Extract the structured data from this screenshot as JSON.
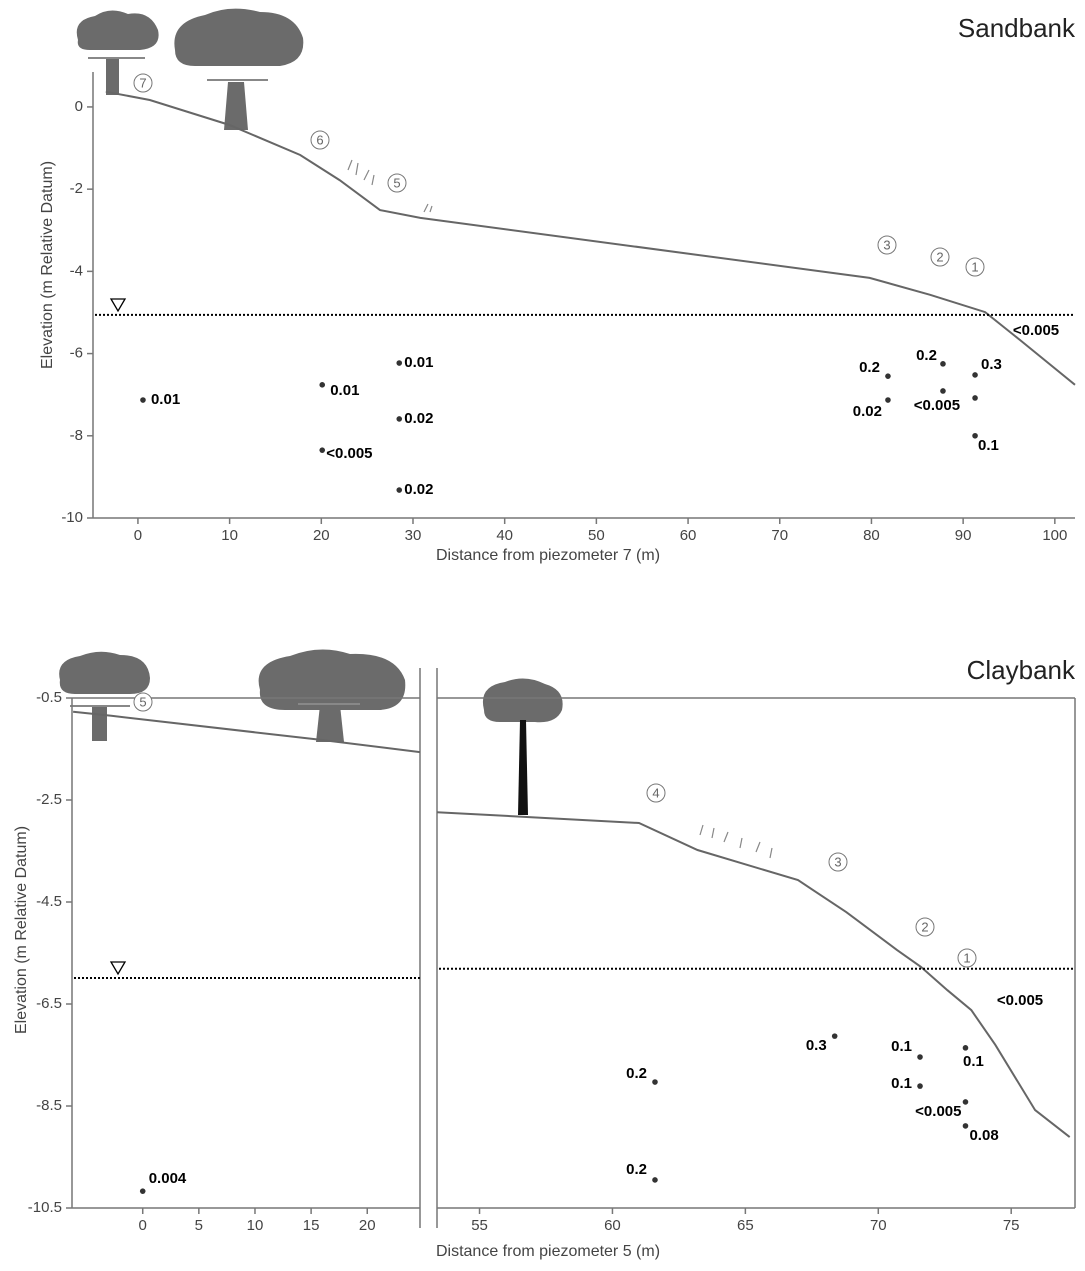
{
  "chart_data": [
    {
      "type": "scatter",
      "title": "Sandbank",
      "xlabel": "Distance from piezometer 7 (m)",
      "ylabel": "Elevation (m Relative Datum)",
      "ylim": [
        -10,
        0.85
      ],
      "yticks": [
        0,
        -2,
        -4,
        -6,
        -8,
        -10
      ],
      "surface_label": "<0.005",
      "panels": [
        {
          "xlim": [
            -4.9,
            102.2
          ],
          "xticks": [
            0,
            10,
            20,
            30,
            40,
            50,
            60,
            70,
            80,
            90,
            100
          ],
          "x": [
            0.55,
            20.1,
            20.1,
            28.5,
            28.5,
            28.5,
            81.8,
            81.8,
            87.8,
            87.8,
            91.3,
            91.3,
            91.3
          ],
          "y": [
            -7.13,
            -6.76,
            -8.35,
            -6.23,
            -7.59,
            -9.32,
            -6.55,
            -7.13,
            -6.25,
            -6.91,
            -6.52,
            -7.08,
            -8.0
          ],
          "labels": [
            "0.01",
            "0.01",
            "<0.005",
            "0.01",
            "0.02",
            "0.02",
            "0.2",
            "0.02",
            "0.2",
            null,
            "0.3",
            "<0.005",
            "0.1"
          ],
          "profile_x": [
            -3.5,
            1.3,
            10.0,
            17.7,
            22.0,
            26.4,
            30.8,
            79.8,
            86.4,
            92.4,
            96.2,
            102.2
          ],
          "profile_y": [
            0.37,
            0.17,
            -0.44,
            -1.17,
            -1.78,
            -2.51,
            -2.7,
            -4.16,
            -4.57,
            -4.99,
            -5.67,
            -6.76
          ],
          "water_table": -5.06,
          "stations": [
            "7",
            "6",
            "5",
            "3",
            "2",
            "1"
          ]
        }
      ]
    },
    {
      "type": "scatter",
      "title": "Claybank",
      "xlabel": "Distance from piezometer 5 (m)",
      "ylabel": "Elevation (m Relative Datum)",
      "ylim": [
        -10.5,
        -0.5
      ],
      "yticks": [
        -0.5,
        -2.5,
        -4.5,
        -6.5,
        -8.5,
        -10.5
      ],
      "surface_label": "<0.005",
      "panels": [
        {
          "xlim": [
            -6.3,
            24.7
          ],
          "xticks": [
            0,
            5,
            10,
            15,
            20
          ],
          "x": [
            0
          ],
          "y": [
            -10.17
          ],
          "labels": [
            "0.004"
          ],
          "profile_x": [
            -6.2,
            -2.8,
            15.8,
            24.7
          ],
          "profile_y": [
            -0.77,
            -0.85,
            -1.32,
            -1.56
          ],
          "water_table": -5.99,
          "stations": [
            "5"
          ]
        },
        {
          "xlim": [
            53.4,
            77.4
          ],
          "xticks": [
            55,
            60,
            65,
            70,
            75
          ],
          "x": [
            68.36,
            71.57,
            71.57,
            61.6,
            61.6,
            73.28,
            73.28,
            73.28
          ],
          "y": [
            -7.13,
            -7.54,
            -8.11,
            -8.03,
            -9.95,
            -7.36,
            -8.42,
            -8.89
          ],
          "labels": [
            "0.3",
            "0.1",
            "0.1",
            "0.2",
            "0.2",
            "0.1",
            "<0.005",
            "0.08"
          ],
          "profile_x": [
            53.4,
            61.0,
            63.2,
            66.98,
            68.8,
            70.7,
            71.6,
            72.6,
            73.5,
            74.4,
            75.9,
            77.2
          ],
          "profile_y": [
            -2.74,
            -2.95,
            -3.48,
            -4.07,
            -4.7,
            -5.44,
            -5.77,
            -6.23,
            -6.62,
            -7.3,
            -8.58,
            -9.11
          ],
          "water_table": -5.81,
          "stations": [
            "4",
            "3",
            "2",
            "1"
          ]
        }
      ]
    }
  ]
}
